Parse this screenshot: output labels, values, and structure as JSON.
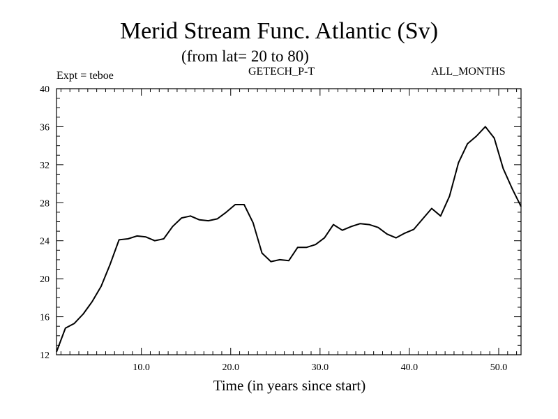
{
  "chart_data": {
    "type": "line",
    "title": "Merid Stream Func. Atlantic (Sv)",
    "subtitle": "(from lat= 20 to 80)",
    "left_label": "Expt = teboe",
    "center_label": "GETECH_P-T",
    "right_label": "ALL_MONTHS",
    "xlabel": "Time (in years since start)",
    "ylabel": "",
    "xlim": [
      0.5,
      52.5
    ],
    "ylim": [
      12,
      40
    ],
    "x_ticks": [
      10,
      20,
      30,
      40,
      50
    ],
    "x_tick_labels": [
      "10.0",
      "20.0",
      "30.0",
      "40.0",
      "50.0"
    ],
    "y_ticks": [
      12,
      16,
      20,
      24,
      28,
      32,
      36,
      40
    ],
    "y_tick_labels": [
      "12",
      "16",
      "20",
      "24",
      "28",
      "32",
      "36",
      "40"
    ],
    "series": [
      {
        "name": "teboe",
        "x": [
          0.5,
          1.5,
          2.5,
          3.5,
          4.5,
          5.5,
          6.5,
          7.5,
          8.5,
          9.5,
          10.5,
          11.5,
          12.5,
          13.5,
          14.5,
          15.5,
          16.5,
          17.5,
          18.5,
          19.5,
          20.5,
          21.5,
          22.5,
          23.5,
          24.5,
          25.5,
          26.5,
          27.5,
          28.5,
          29.5,
          30.5,
          31.5,
          32.5,
          33.5,
          34.5,
          35.5,
          36.5,
          37.5,
          38.5,
          39.5,
          40.5,
          41.5,
          42.5,
          43.5,
          44.5,
          45.5,
          46.5,
          47.5,
          48.5,
          49.5,
          50.5,
          51.5,
          52.5
        ],
        "values": [
          12.3,
          14.8,
          15.3,
          16.3,
          17.6,
          19.2,
          21.5,
          24.1,
          24.2,
          24.5,
          24.4,
          24.0,
          24.2,
          25.5,
          26.4,
          26.6,
          26.2,
          26.1,
          26.3,
          27.0,
          27.8,
          27.8,
          25.9,
          22.7,
          21.8,
          22.0,
          21.9,
          23.3,
          23.3,
          23.6,
          24.3,
          25.7,
          25.1,
          25.5,
          25.8,
          25.7,
          25.4,
          24.7,
          24.3,
          24.8,
          25.2,
          26.3,
          27.4,
          26.6,
          28.7,
          32.2,
          34.2,
          35.0,
          36.0,
          34.8,
          31.6,
          29.5,
          27.6
        ]
      }
    ]
  }
}
